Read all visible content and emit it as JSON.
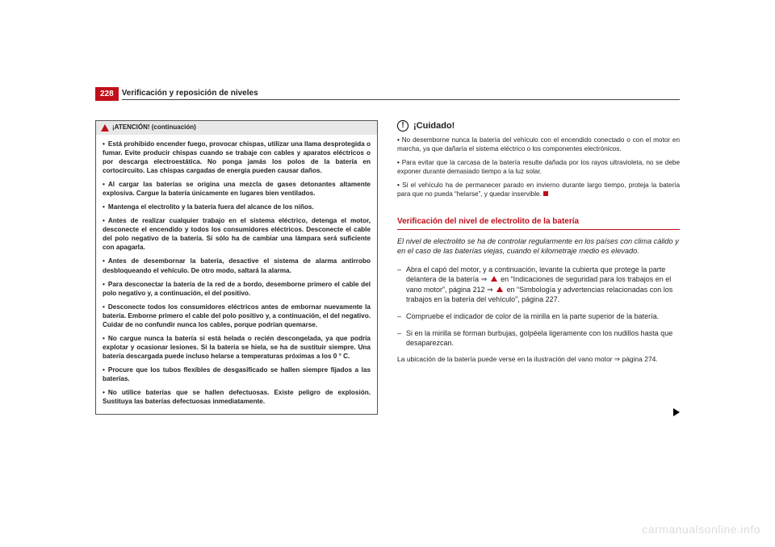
{
  "page_number": "228",
  "section_title": "Verificación y reposición de niveles",
  "watermark": "carmanualsonline.info",
  "colors": {
    "accent": "#c10e1a",
    "text": "#222222",
    "box_border": "#555555",
    "box_header_bg": "#e8e8e8",
    "watermark": "#dddddd",
    "background": "#ffffff"
  },
  "left": {
    "box_title": "¡ATENCIÓN! (continuación)",
    "bullets": [
      "Está prohibido encender fuego, provocar chispas, utilizar una llama desprotegida o fumar. Evite producir chispas cuando se trabaje con cables y aparatos eléctricos o por descarga electroestática. No ponga jamás los polos de la batería en cortocircuito. Las chispas cargadas de energía pueden causar daños.",
      "Al cargar las baterías se origina una mezcla de gases detonantes altamente explosiva. Cargue la batería únicamente en lugares bien ventilados.",
      "Mantenga el electrolito y la batería fuera del alcance de los niños.",
      "Antes de realizar cualquier trabajo en el sistema eléctrico, detenga el motor, desconecte el encendido y todos los consumidores eléctricos. Desconecte el cable del polo negativo de la batería. Si sólo ha de cambiar una lámpara será suficiente con apagarla.",
      "Antes de desembornar la batería, desactive el sistema de alarma antirrobo desbloqueando el vehículo. De otro modo, saltará la alarma.",
      "Para desconectar la batería de la red de a bordo, desemborne primero el cable del polo negativo y, a continuación, el del positivo.",
      "Desconecte todos los consumidores eléctricos antes de embornar nuevamente la batería. Emborne primero el cable del polo positivo y, a continuación, el del negativo. Cuidar de no confundir nunca los cables, porque podrían quemarse.",
      "No cargue nunca la batería si está helada o recién descongelada, ya que podría explotar y ocasionar lesiones. Si la batería se hiela, se ha de sustituir siempre. Una batería descargada puede incluso helarse a temperaturas próximas a los 0 ° C.",
      "Procure que los tubos flexibles de desgasificado se hallen siempre fijados a las baterías.",
      "No utilice baterías que se hallen defectuosas. Existe peligro de explosión. Sustituya las baterías defectuosas inmediatamente."
    ]
  },
  "right": {
    "caution_title": "¡Cuidado!",
    "caution_bullets": [
      "No desemborne nunca la batería del vehículo con el encendido conectado o con el motor en marcha, ya que dañaría el sistema eléctrico o los componentes electrónicos.",
      "Para evitar que la carcasa de la batería resulte dañada por los rayos ultravioleta, no se debe exponer durante demasiado tiempo a la luz solar.",
      "Si el vehículo ha de permanecer parado en invierno durante largo tiempo, proteja la batería para que no pueda “helarse”, y quedar inservible."
    ],
    "subheading": "Verificación del nivel de electrolito de la batería",
    "lead": "El nivel de electrolito se ha de controlar regularmente en los países con clima cálido y en el caso de las baterías viejas, cuando el kilometraje medio es elevado.",
    "steps": [
      {
        "pre": "Abra el capó del motor, y a continuación, levante la cubierta que protege la parte delantera de la batería ⇒ ",
        "mid": " en “Indicaciones de seguridad para los trabajos en el vano motor”, página 212 ⇒ ",
        "post": " en “Simbología y advertencias relacionadas con los trabajos en la batería del vehículo”, página 227."
      },
      {
        "text": "Compruebe el indicador de color de la mirilla en la parte superior de la batería."
      },
      {
        "text": "Si en la mirilla se forman burbujas, golpéela ligeramente con los nudillos hasta que desaparezcan."
      }
    ],
    "footer": "La ubicación de la batería puede verse en la ilustración del vano motor ⇒ página 274."
  }
}
